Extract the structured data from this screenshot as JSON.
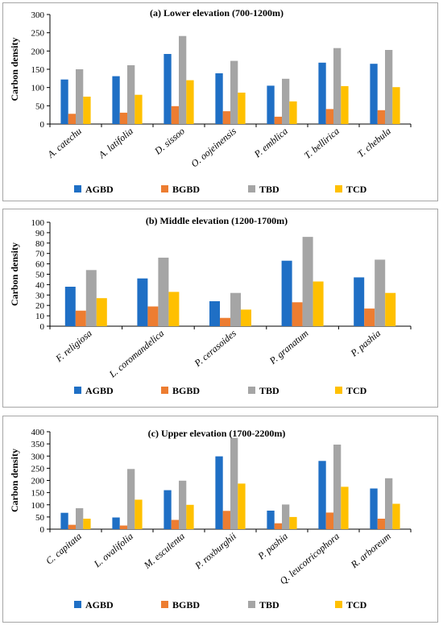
{
  "legend": {
    "series": [
      "AGBD",
      "BGBD",
      "TBD",
      "TCD"
    ],
    "colors": [
      "#1f6fc5",
      "#ed7d31",
      "#a5a5a5",
      "#ffc000"
    ]
  },
  "chart_data": [
    {
      "type": "bar",
      "title": "(a) Lower elevation (700-1200m)",
      "ylabel": "Carbon density",
      "xlabel": "",
      "ylim": [
        0,
        300
      ],
      "yticks": [
        0,
        50,
        100,
        150,
        200,
        250,
        300
      ],
      "categories": [
        "A. catechu",
        "A. latifolia",
        "D. sissoo",
        "O. oojeinensis",
        "P. emblica",
        "T. bellirica",
        "T. chebula"
      ],
      "series": [
        {
          "name": "AGBD",
          "values": [
            122,
            131,
            192,
            139,
            105,
            168,
            165
          ]
        },
        {
          "name": "BGBD",
          "values": [
            28,
            31,
            49,
            35,
            20,
            41,
            38
          ]
        },
        {
          "name": "TBD",
          "values": [
            150,
            161,
            241,
            173,
            124,
            208,
            203
          ]
        },
        {
          "name": "TCD",
          "values": [
            75,
            80,
            120,
            86,
            62,
            104,
            101
          ]
        }
      ],
      "grid": false,
      "legend_position": "bottom"
    },
    {
      "type": "bar",
      "title": "(b) Middle elevation (1200-1700m)",
      "ylabel": "Carbon density",
      "xlabel": "",
      "ylim": [
        0,
        100
      ],
      "yticks": [
        0,
        10,
        20,
        30,
        40,
        50,
        60,
        70,
        80,
        90,
        100
      ],
      "categories": [
        "F. religiosa",
        "L. coromandelica",
        "P. cerasoides",
        "P. granatum",
        "P. pashia"
      ],
      "series": [
        {
          "name": "AGBD",
          "values": [
            38,
            46,
            24,
            63,
            47
          ]
        },
        {
          "name": "BGBD",
          "values": [
            15,
            19,
            8,
            23,
            17
          ]
        },
        {
          "name": "TBD",
          "values": [
            54,
            66,
            32,
            86,
            64
          ]
        },
        {
          "name": "TCD",
          "values": [
            27,
            33,
            16,
            43,
            32
          ]
        }
      ],
      "grid": false,
      "legend_position": "bottom"
    },
    {
      "type": "bar",
      "title": "(c) Upper elevation (1700-2200m)",
      "ylabel": "Carbon density",
      "xlabel": "",
      "ylim": [
        0,
        400
      ],
      "yticks": [
        0,
        50,
        100,
        150,
        200,
        250,
        300,
        350,
        400
      ],
      "categories": [
        "C. capitata",
        "L. ovalifolia",
        "M. esculenta",
        "P. roxburghii",
        "P. pashia",
        "Q. leucotricophora",
        "R. arboreum"
      ],
      "series": [
        {
          "name": "AGBD",
          "values": [
            67,
            48,
            160,
            299,
            76,
            280,
            167
          ]
        },
        {
          "name": "BGBD",
          "values": [
            18,
            15,
            38,
            75,
            24,
            68,
            43
          ]
        },
        {
          "name": "TBD",
          "values": [
            86,
            247,
            199,
            375,
            101,
            347,
            209
          ]
        },
        {
          "name": "TCD",
          "values": [
            43,
            121,
            100,
            187,
            50,
            174,
            104
          ]
        }
      ],
      "grid": false,
      "legend_position": "bottom"
    }
  ]
}
